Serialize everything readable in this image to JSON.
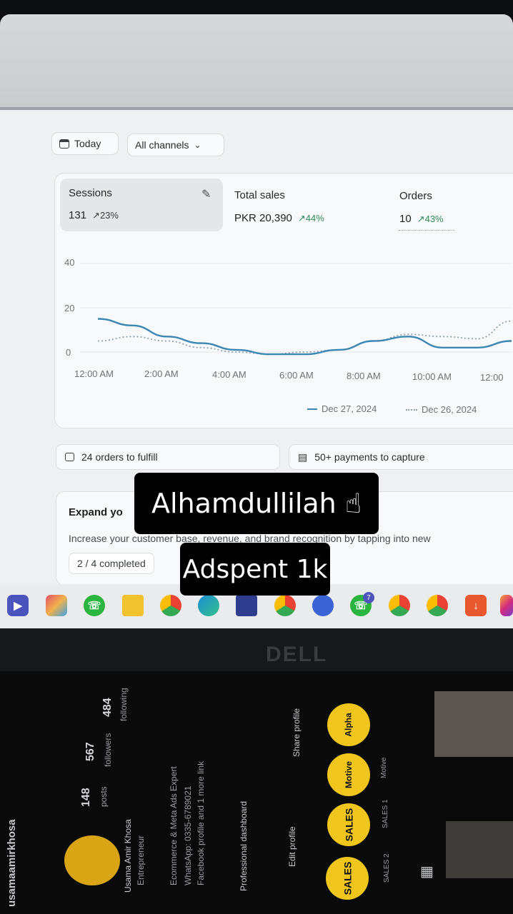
{
  "toolbar": {
    "date_label": "Today",
    "channel_label": "All channels"
  },
  "metrics": [
    {
      "title": "Sessions",
      "value": "131",
      "change": "23%"
    },
    {
      "title": "Total sales",
      "value": "PKR 20,390",
      "change": "44%"
    },
    {
      "title": "Orders",
      "value": "10",
      "change": "43%"
    }
  ],
  "chart_data": {
    "type": "line",
    "x": [
      "12:00 AM",
      "1:00 AM",
      "2:00 AM",
      "3:00 AM",
      "4:00 AM",
      "5:00 AM",
      "6:00 AM",
      "7:00 AM",
      "8:00 AM",
      "9:00 AM",
      "10:00 AM",
      "11:00 AM",
      "12:00"
    ],
    "x_tick_labels": [
      "12:00 AM",
      "2:00 AM",
      "4:00 AM",
      "6:00 AM",
      "8:00 AM",
      "10:00 AM",
      "12:00"
    ],
    "y_ticks": [
      "40",
      "20",
      "0"
    ],
    "ylim": [
      0,
      40
    ],
    "series": [
      {
        "name": "Dec 27, 2024",
        "style": "solid",
        "color": "#3b86b4",
        "values": [
          15,
          12,
          7,
          4,
          1,
          -1,
          -1,
          1,
          5,
          7,
          2,
          2,
          5
        ]
      },
      {
        "name": "Dec 26, 2024",
        "style": "dotted",
        "color": "#8fa2ae",
        "values": [
          5,
          7,
          5,
          2,
          0,
          -1,
          0,
          1,
          5,
          8,
          7,
          6,
          14
        ]
      }
    ]
  },
  "notices": {
    "orders": "24 orders to fulfill",
    "payments": "50+ payments to capture"
  },
  "expand": {
    "title": "Expand yo",
    "desc": "Increase your customer base, revenue, and brand recognition by tapping into new",
    "progress": "2 / 4 completed"
  },
  "monitor_brand": "DELL",
  "phone_profile": {
    "username": "usamaamirkhosa",
    "posts": "148",
    "posts_label": "posts",
    "followers": "567",
    "followers_label": "followers",
    "following": "484",
    "following_label": "following",
    "name": "Usama Amir Khosa",
    "role": "Entrepreneur",
    "bio": "Ecommerce & Meta Ads Expert",
    "whatsapp": "WhatsApp: 0335-6789021",
    "links": "Facebook profile and 1 more link",
    "dashboard": "Professional dashboard",
    "edit_profile": "Edit profile",
    "share_profile": "Share profile",
    "highlights": [
      "Alpha",
      "Motive",
      "SALES",
      "SALES"
    ],
    "highlight_labels": [
      "Motive",
      "SALES 1",
      "SALES 2"
    ]
  },
  "stickers": {
    "line1": "Alhamdullilah ☝",
    "line2": "Adspent 1k"
  }
}
